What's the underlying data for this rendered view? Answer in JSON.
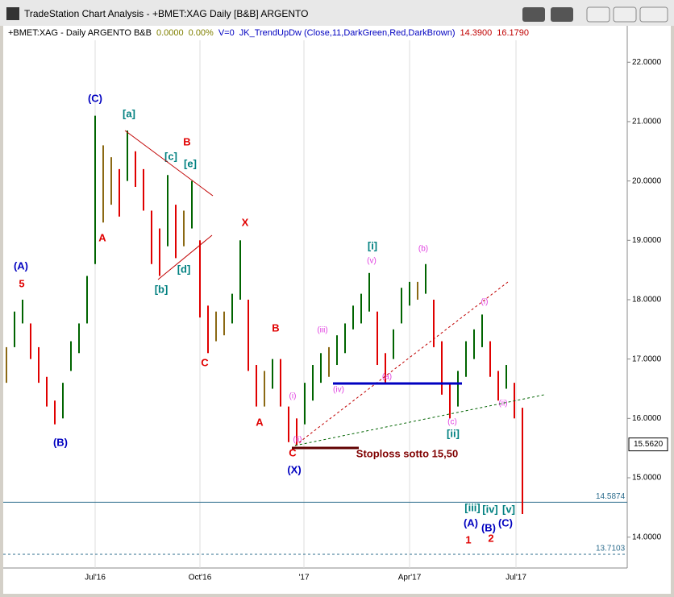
{
  "window_title": "TradeStation Chart Analysis - +BMET:XAG Daily [B&B] ARGENTO",
  "chart_data": {
    "type": "hilo",
    "header": [
      {
        "text": "+BMET:XAG - Daily  ARGENTO  B&B",
        "color": "#000000"
      },
      {
        "text": "0.0000",
        "color": "#808000"
      },
      {
        "text": "0.00%",
        "color": "#808000"
      },
      {
        "text": "V=0",
        "color": "#0000c0"
      },
      {
        "text": "JK_TrendUpDw (Close,11,DarkGreen,Red,DarkBrown)",
        "color": "#0000c0"
      },
      {
        "text": "14.3900",
        "color": "#c00000"
      },
      {
        "text": "16.1790",
        "color": "#c00000"
      }
    ],
    "x": [
      0,
      1,
      2,
      3,
      4,
      5,
      6,
      7,
      8,
      9,
      10,
      11,
      12,
      13,
      14,
      15,
      16,
      17,
      18,
      19,
      20,
      21,
      22,
      23,
      24,
      25,
      26,
      27,
      28,
      29,
      30,
      31,
      32,
      33,
      34,
      35,
      36,
      37,
      38,
      39,
      40,
      41,
      42,
      43,
      44,
      45,
      46,
      47,
      48,
      49,
      50,
      51,
      52,
      53,
      54,
      55,
      56,
      57,
      58,
      59,
      60,
      61,
      62,
      63,
      64
    ],
    "highs": [
      17.2,
      17.8,
      18.0,
      17.6,
      17.2,
      16.7,
      16.3,
      16.6,
      17.3,
      17.6,
      18.4,
      21.1,
      20.6,
      20.4,
      20.2,
      20.85,
      20.5,
      20.2,
      19.5,
      19.2,
      20.1,
      19.6,
      19.5,
      20.0,
      19.0,
      17.9,
      17.8,
      17.8,
      18.1,
      19.0,
      18.0,
      16.9,
      16.8,
      17.0,
      17.0,
      16.2,
      16.0,
      16.6,
      16.9,
      17.1,
      17.2,
      17.4,
      17.6,
      17.9,
      18.1,
      18.45,
      17.8,
      17.1,
      17.5,
      18.2,
      18.3,
      18.3,
      18.6,
      18.0,
      17.3,
      16.6,
      16.8,
      17.3,
      17.5,
      17.75,
      17.3,
      16.8,
      16.9,
      16.6,
      16.179
    ],
    "lows": [
      16.6,
      17.2,
      17.6,
      17.0,
      16.6,
      16.2,
      15.9,
      16.0,
      16.8,
      17.1,
      17.6,
      18.6,
      19.3,
      19.6,
      19.4,
      20.0,
      19.9,
      19.5,
      18.6,
      18.4,
      18.9,
      18.7,
      18.9,
      19.2,
      17.7,
      17.1,
      17.3,
      17.4,
      17.6,
      18.0,
      16.8,
      16.2,
      16.2,
      16.5,
      16.2,
      15.6,
      15.55,
      15.9,
      16.3,
      16.6,
      16.7,
      16.9,
      17.1,
      17.5,
      17.6,
      17.8,
      16.9,
      16.6,
      17.0,
      17.6,
      17.9,
      18.0,
      18.1,
      17.2,
      16.4,
      16.0,
      16.2,
      16.7,
      17.0,
      17.2,
      16.7,
      16.3,
      16.5,
      16.0,
      14.39
    ],
    "colors": {
      "up": "#006400",
      "down": "#e00000",
      "flat": "#8b6914"
    },
    "xlim": [
      0,
      77
    ],
    "ylim": [
      13.48,
      22.37
    ],
    "xticks": [
      {
        "value": 11,
        "label": "Jul'16"
      },
      {
        "value": 24,
        "label": "Oct'16"
      },
      {
        "value": 36.9,
        "label": "'17"
      },
      {
        "value": 50,
        "label": "Apr'17"
      },
      {
        "value": 63.2,
        "label": "Jul'17"
      }
    ],
    "yticks": [
      {
        "value": 14,
        "label": "14.0000"
      },
      {
        "value": 15,
        "label": "15.0000"
      },
      {
        "value": 16,
        "label": "16.0000"
      },
      {
        "value": 17,
        "label": "17.0000"
      },
      {
        "value": 18,
        "label": "18.0000"
      },
      {
        "value": 19,
        "label": "19.0000"
      },
      {
        "value": 20,
        "label": "20.0000"
      },
      {
        "value": 21,
        "label": "21.0000"
      },
      {
        "value": 22,
        "label": "22.0000"
      }
    ],
    "reference_lines": [
      {
        "value": 14.5874,
        "label": "14.5874"
      },
      {
        "value": 13.7103,
        "label": "13.7103"
      }
    ],
    "last_price": {
      "value": 15.562,
      "label": "15.5620"
    },
    "annotations": [
      {
        "text": "(C)",
        "color": "#0000c0"
      },
      {
        "text": "[a]",
        "color": "#008080"
      },
      {
        "text": "B",
        "color": "#e00000"
      },
      {
        "text": "[c]",
        "color": "#008080"
      },
      {
        "text": "[e]",
        "color": "#008080"
      },
      {
        "text": "A",
        "color": "#e00000"
      },
      {
        "text": "[b]",
        "color": "#008080"
      },
      {
        "text": "[d]",
        "color": "#008080"
      },
      {
        "text": "X",
        "color": "#e00000"
      },
      {
        "text": "C",
        "color": "#e00000"
      },
      {
        "text": "(A)",
        "color": "#0000c0"
      },
      {
        "text": "5",
        "color": "#e00000"
      },
      {
        "text": "(B)",
        "color": "#0000c0"
      },
      {
        "text": "B",
        "color": "#e00000"
      },
      {
        "text": "A",
        "color": "#e00000"
      },
      {
        "text": "(i)",
        "color": "#e040e0"
      },
      {
        "text": "(ii)",
        "color": "#e040e0"
      },
      {
        "text": "(iii)",
        "color": "#e040e0"
      },
      {
        "text": "(iv)",
        "color": "#e040e0"
      },
      {
        "text": "[i]",
        "color": "#008080"
      },
      {
        "text": "(v)",
        "color": "#e040e0"
      },
      {
        "text": "(a)",
        "color": "#e040e0"
      },
      {
        "text": "(b)",
        "color": "#e040e0"
      },
      {
        "text": "(c)",
        "color": "#e040e0"
      },
      {
        "text": "[ii]",
        "color": "#008080"
      },
      {
        "text": "(i)",
        "color": "#e040e0"
      },
      {
        "text": "(ii)",
        "color": "#e040e0"
      },
      {
        "text": "C",
        "color": "#e00000"
      },
      {
        "text": "(X)",
        "color": "#0000c0"
      },
      {
        "text": "Stoploss  sotto 15,50",
        "color": "#800000"
      },
      {
        "text": "[iii]",
        "color": "#008080"
      },
      {
        "text": "[iv]",
        "color": "#008080"
      },
      {
        "text": "[v]",
        "color": "#008080"
      },
      {
        "text": "(A)",
        "color": "#0000c0"
      },
      {
        "text": "(B)",
        "color": "#0000c0"
      },
      {
        "text": "(C)",
        "color": "#0000c0"
      },
      {
        "text": "1",
        "color": "#e00000"
      },
      {
        "text": "2",
        "color": "#e00000"
      }
    ]
  }
}
